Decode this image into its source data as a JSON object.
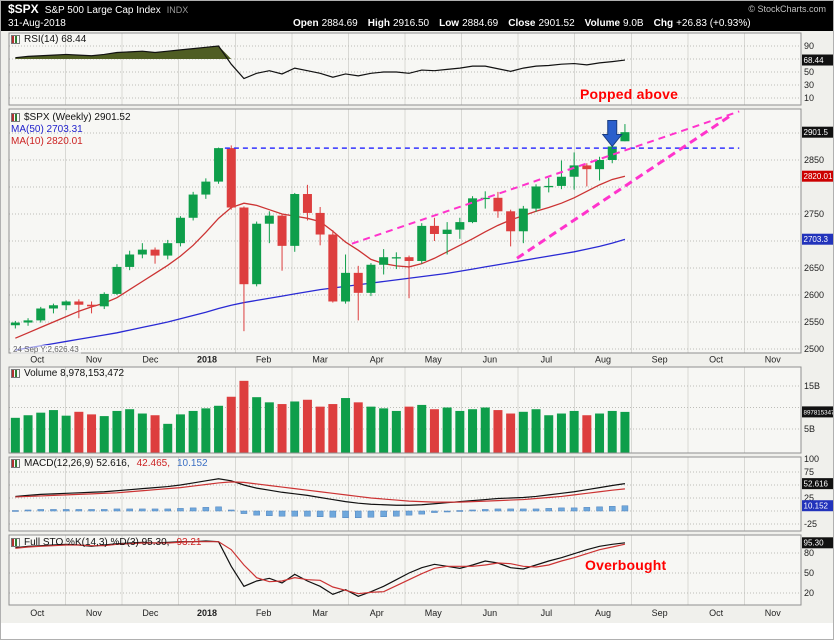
{
  "header": {
    "symbol": "$SPX",
    "name": "S&P 500 Large Cap Index",
    "exchange": "INDX",
    "copyright": "© StockCharts.com",
    "date": "31-Aug-2018",
    "quote": [
      {
        "label": "Open",
        "value": "2884.69"
      },
      {
        "label": "High",
        "value": "2916.50"
      },
      {
        "label": "Low",
        "value": "2884.69"
      },
      {
        "label": "Close",
        "value": "2901.52"
      },
      {
        "label": "Volume",
        "value": "9.0B"
      },
      {
        "label": "Chg",
        "value": "+26.83 (+0.93%)"
      }
    ]
  },
  "legends": {
    "rsi": "RSI(14) 68.44",
    "price_main": "$SPX (Weekly) 2901.52",
    "ma50": "MA(50) 2703.31",
    "ma10": "MA(10) 2820.01",
    "volume": "Volume 8,978,153,472",
    "macd_black": "MACD(12,26,9) 52.616,",
    "macd_red": "42.465,",
    "macd_blue": "10.152",
    "sto_black": "Full STO %K(14,3) %D(3) 95.30,",
    "sto_red": "93.21"
  },
  "annotations": {
    "popped_above": "Popped above",
    "overbought": "Overbought",
    "crosshair_readout": "24 Sep Y:2,626.43",
    "shapes": {
      "resistance": {
        "price": 2872,
        "week_start": 16.5,
        "week_end": 57
      },
      "trend_upper": {
        "week1": 26.5,
        "price1": 2695,
        "week2": 57,
        "price2": 2940
      },
      "trend_lower": {
        "week1": 39.5,
        "price1": 2668,
        "week2": 56.5,
        "price2": 2935
      },
      "arrow": {
        "week": 47,
        "tip_price": 2875
      }
    }
  },
  "colors": {
    "up": "#0E9E4A",
    "down": "#DD3E3E",
    "ma50": "#2A2AD4",
    "ma10": "#CC3333",
    "rsi_line": "#111111",
    "rsi_fill": "#4F5D23",
    "macd_line": "#111111",
    "macd_signal": "#CC3333",
    "macd_hist": "#6FA8DC",
    "macd_hist_border": "#4F81BD",
    "sto_k": "#111111",
    "sto_d": "#CC3333",
    "resistance_blue": "#3333FF",
    "trend_magenta": "#FF33CC",
    "arrow_blue": "#2B5FCC",
    "arrow_edge": "#1A3C80",
    "box_black": "#111111",
    "box_red": "#CC0000",
    "box_blue": "#2233BB",
    "chart_bg": "#F0F0EC",
    "panel_bg": "#F7F7F4",
    "panel_border": "#8F8F8F",
    "grid_v": "#D8D8D4",
    "grid_h": "#BDBDB8",
    "axis_text": "#222222",
    "annotation_red": "#FF0000"
  },
  "chart_data": [
    {
      "id": "rsi",
      "type": "line",
      "title": "RSI(14)",
      "last": 68.44,
      "ylim": [
        0,
        100
      ],
      "overbought_level": 70,
      "gridlines": [
        90,
        70,
        50,
        30,
        10
      ],
      "axis_labels": [
        {
          "label": "90",
          "value": 90
        },
        {
          "label": "68.44",
          "value": 68.44,
          "box": "black"
        },
        {
          "label": "50",
          "value": 50
        },
        {
          "label": "30",
          "value": 30
        },
        {
          "label": "10",
          "value": 10
        }
      ],
      "series": [
        {
          "name": "RSI(14)",
          "color_key": "rsi_line",
          "values": [
            72,
            74,
            75,
            76,
            77,
            76,
            75,
            77,
            80,
            81,
            82,
            80,
            82,
            84,
            86,
            88,
            90,
            62,
            40,
            48,
            52,
            47,
            56,
            52,
            48,
            42,
            47,
            44,
            48,
            50,
            50,
            48,
            53,
            52,
            54,
            56,
            59,
            59,
            55,
            51,
            56,
            59,
            60,
            62,
            63,
            61,
            64,
            66,
            68.4
          ]
        }
      ]
    },
    {
      "id": "price",
      "type": "candlestick",
      "title": "$SPX (Weekly)",
      "last": 2901.52,
      "categories": [
        "Oct",
        "Nov",
        "Dec",
        "2018",
        "Feb",
        "Mar",
        "Apr",
        "May",
        "Jun",
        "Jul",
        "Aug",
        "Sep",
        "Oct",
        "Nov"
      ],
      "ylim": [
        2490,
        2925
      ],
      "gridlines": [
        2500,
        2550,
        2600,
        2650,
        2700,
        2750,
        2800,
        2850,
        2900
      ],
      "axis_labels": [
        {
          "label": "2901.5",
          "value": 2901.5,
          "box": "black"
        },
        {
          "label": "2850",
          "value": 2850
        },
        {
          "label": "2820.01",
          "value": 2820.01,
          "box": "red"
        },
        {
          "label": "2750",
          "value": 2750
        },
        {
          "label": "2703.3",
          "value": 2703.3,
          "box": "blue"
        },
        {
          "label": "2650",
          "value": 2650
        },
        {
          "label": "2600",
          "value": 2600
        },
        {
          "label": "2550",
          "value": 2550
        },
        {
          "label": "2500",
          "value": 2500
        }
      ],
      "candles": [
        [
          2544,
          2552,
          2538,
          2549
        ],
        [
          2549,
          2557,
          2543,
          2553
        ],
        [
          2553,
          2578,
          2549,
          2575
        ],
        [
          2575,
          2584,
          2566,
          2581
        ],
        [
          2581,
          2590,
          2572,
          2588
        ],
        [
          2588,
          2592,
          2557,
          2582
        ],
        [
          2582,
          2588,
          2566,
          2579
        ],
        [
          2579,
          2605,
          2574,
          2602
        ],
        [
          2602,
          2657,
          2600,
          2652
        ],
        [
          2652,
          2682,
          2646,
          2675
        ],
        [
          2675,
          2696,
          2668,
          2684
        ],
        [
          2684,
          2688,
          2658,
          2673
        ],
        [
          2673,
          2702,
          2666,
          2696
        ],
        [
          2696,
          2746,
          2690,
          2743
        ],
        [
          2743,
          2791,
          2738,
          2786
        ],
        [
          2786,
          2816,
          2778,
          2810
        ],
        [
          2810,
          2873,
          2806,
          2872
        ],
        [
          2872,
          2877,
          2758,
          2762
        ],
        [
          2762,
          2764,
          2533,
          2620
        ],
        [
          2620,
          2736,
          2616,
          2732
        ],
        [
          2732,
          2755,
          2696,
          2747
        ],
        [
          2747,
          2750,
          2645,
          2691
        ],
        [
          2691,
          2789,
          2680,
          2787
        ],
        [
          2787,
          2804,
          2738,
          2752
        ],
        [
          2752,
          2763,
          2692,
          2712
        ],
        [
          2712,
          2720,
          2586,
          2588
        ],
        [
          2588,
          2675,
          2584,
          2641
        ],
        [
          2641,
          2654,
          2553,
          2604
        ],
        [
          2604,
          2659,
          2598,
          2656
        ],
        [
          2656,
          2685,
          2638,
          2670
        ],
        [
          2670,
          2679,
          2648,
          2670
        ],
        [
          2670,
          2673,
          2594,
          2663
        ],
        [
          2663,
          2733,
          2658,
          2728
        ],
        [
          2728,
          2743,
          2700,
          2713
        ],
        [
          2713,
          2735,
          2675,
          2721
        ],
        [
          2721,
          2743,
          2704,
          2735
        ],
        [
          2735,
          2783,
          2733,
          2779
        ],
        [
          2779,
          2792,
          2760,
          2780
        ],
        [
          2780,
          2791,
          2743,
          2755
        ],
        [
          2755,
          2758,
          2690,
          2718
        ],
        [
          2718,
          2765,
          2696,
          2760
        ],
        [
          2760,
          2805,
          2754,
          2801
        ],
        [
          2801,
          2817,
          2790,
          2802
        ],
        [
          2802,
          2849,
          2796,
          2819
        ],
        [
          2819,
          2864,
          2795,
          2840
        ],
        [
          2840,
          2844,
          2801,
          2833
        ],
        [
          2833,
          2856,
          2812,
          2850
        ],
        [
          2850,
          2877,
          2844,
          2875
        ],
        [
          2884.69,
          2916.5,
          2884.69,
          2901.52
        ]
      ],
      "overlays": [
        {
          "name": "MA(50)",
          "color_key": "ma50",
          "values": [
            2498,
            2502,
            2506,
            2510,
            2514,
            2518,
            2522,
            2526,
            2530,
            2535,
            2540,
            2545,
            2550,
            2556,
            2562,
            2568,
            2575,
            2581,
            2586,
            2590,
            2594,
            2598,
            2602,
            2606,
            2610,
            2613,
            2616,
            2619,
            2622,
            2625,
            2628,
            2631,
            2634,
            2637,
            2640,
            2644,
            2648,
            2652,
            2656,
            2660,
            2664,
            2668,
            2672,
            2676,
            2680,
            2685,
            2690,
            2696,
            2703
          ]
        },
        {
          "name": "MA(10)",
          "color_key": "ma10",
          "values": [
            2520,
            2530,
            2540,
            2550,
            2560,
            2570,
            2578,
            2585,
            2595,
            2610,
            2625,
            2640,
            2655,
            2672,
            2692,
            2716,
            2742,
            2762,
            2770,
            2766,
            2758,
            2750,
            2746,
            2742,
            2736,
            2718,
            2698,
            2683,
            2666,
            2658,
            2654,
            2652,
            2658,
            2668,
            2680,
            2692,
            2704,
            2717,
            2729,
            2739,
            2747,
            2755,
            2762,
            2770,
            2780,
            2792,
            2804,
            2814,
            2820
          ]
        }
      ]
    },
    {
      "id": "volume",
      "type": "bar",
      "title": "Volume",
      "last": "8,978,153,472",
      "unit": "B",
      "ylim": [
        0,
        16.5
      ],
      "gridlines": [
        5,
        10,
        15
      ],
      "axis_labels": [
        {
          "label": "15B",
          "value": 15
        },
        {
          "label": "8978153472",
          "value": 8.978,
          "box": "black"
        },
        {
          "label": "5B",
          "value": 5
        }
      ],
      "values": [
        7.6,
        8.2,
        8.8,
        9.4,
        8.1,
        9.0,
        8.4,
        8.0,
        9.2,
        9.6,
        8.6,
        8.2,
        6.2,
        8.4,
        9.2,
        9.8,
        10.4,
        12.5,
        16.2,
        12.4,
        11.2,
        10.8,
        11.4,
        11.8,
        10.2,
        10.8,
        12.2,
        11.2,
        10.2,
        9.8,
        9.2,
        10.2,
        10.6,
        9.6,
        10.0,
        9.2,
        9.6,
        10.0,
        9.4,
        8.6,
        9.0,
        9.6,
        8.2,
        8.6,
        9.2,
        8.2,
        8.6,
        9.2,
        8.978
      ]
    },
    {
      "id": "macd",
      "type": "line",
      "title": "MACD(12,26,9)",
      "ylim": [
        -25,
        100
      ],
      "gridlines": [
        75,
        50,
        25,
        0,
        -25
      ],
      "axis_labels": [
        {
          "label": "100",
          "value": 100
        },
        {
          "label": "75",
          "value": 75
        },
        {
          "label": "52.616",
          "value": 52.616,
          "box": "black"
        },
        {
          "label": "25",
          "value": 25
        },
        {
          "label": "10.152",
          "value": 10.152,
          "box": "blue"
        },
        {
          "label": "-25",
          "value": -25
        }
      ],
      "series": [
        {
          "name": "MACD",
          "color_key": "macd_line",
          "values": [
            28,
            30,
            32,
            33,
            34,
            35,
            36,
            37,
            39,
            41,
            43,
            45,
            47,
            50,
            54,
            58,
            62,
            58,
            50,
            44,
            40,
            36,
            33,
            30,
            26,
            22,
            18,
            15,
            13,
            12,
            11,
            11,
            12,
            14,
            16,
            18,
            20,
            22,
            24,
            25,
            26,
            28,
            31,
            34,
            37,
            41,
            45,
            49,
            52.6
          ]
        },
        {
          "name": "Signal",
          "color_key": "macd_signal",
          "values": [
            27,
            28,
            29,
            30,
            31,
            32,
            33,
            34,
            35,
            37,
            39,
            41,
            43,
            45,
            48,
            51,
            54,
            56,
            55,
            52,
            49,
            46,
            43,
            40,
            37,
            34,
            31,
            28,
            25,
            23,
            21,
            19,
            18,
            17,
            17,
            17,
            18,
            19,
            20,
            21,
            22,
            24,
            26,
            28,
            31,
            34,
            37,
            40,
            42.5
          ]
        }
      ],
      "histogram": [
        1,
        2,
        3,
        3,
        3,
        3,
        3,
        3,
        4,
        4,
        4,
        4,
        4,
        5,
        6,
        7,
        8,
        2,
        -5,
        -8,
        -9,
        -10,
        -10,
        -10,
        -11,
        -12,
        -13,
        -13,
        -12,
        -11,
        -10,
        -8,
        -6,
        -3,
        -1,
        1,
        2,
        3,
        4,
        4,
        4,
        4,
        5,
        6,
        6,
        7,
        8,
        9,
        10.1
      ]
    },
    {
      "id": "sto",
      "type": "line",
      "title": "Full STO %K(14,3) %D(3)",
      "ylim": [
        0,
        100
      ],
      "gridlines": [
        80,
        50,
        20
      ],
      "axis_labels": [
        {
          "label": "95.30",
          "value": 95.3,
          "box": "black"
        },
        {
          "label": "80",
          "value": 80
        },
        {
          "label": "50",
          "value": 50
        },
        {
          "label": "20",
          "value": 20
        }
      ],
      "series": [
        {
          "name": "%K",
          "color_key": "sto_k",
          "values": [
            88,
            90,
            91,
            92,
            93,
            92,
            90,
            92,
            94,
            95,
            96,
            95,
            96,
            97,
            97,
            98,
            97,
            60,
            30,
            38,
            42,
            35,
            48,
            38,
            30,
            18,
            25,
            15,
            22,
            30,
            40,
            50,
            58,
            63,
            60,
            57,
            62,
            68,
            65,
            58,
            56,
            62,
            68,
            73,
            79,
            85,
            90,
            93,
            95.3
          ]
        },
        {
          "name": "%D",
          "color_key": "sto_d",
          "values": [
            87,
            89,
            90,
            91,
            92,
            92,
            91,
            91,
            93,
            94,
            95,
            95,
            95,
            96,
            97,
            97,
            97,
            85,
            62,
            43,
            37,
            38,
            43,
            40,
            39,
            29,
            24,
            19,
            21,
            22,
            31,
            40,
            49,
            57,
            60,
            60,
            60,
            62,
            65,
            64,
            60,
            59,
            62,
            68,
            73,
            79,
            85,
            89,
            93.2
          ]
        }
      ]
    }
  ]
}
